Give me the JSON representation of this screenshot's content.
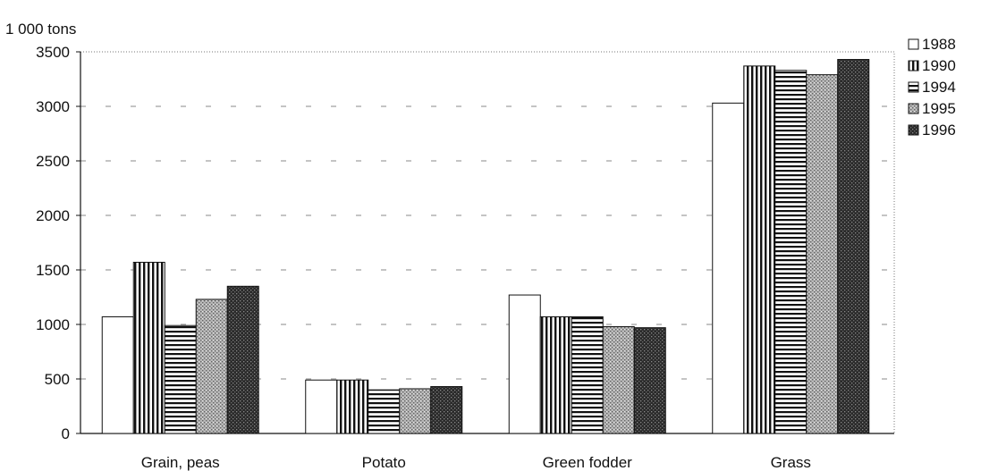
{
  "chart_data": {
    "type": "bar",
    "ylabel": "1 000 tons",
    "ylim": [
      0,
      3500
    ],
    "yticks": [
      0,
      500,
      1000,
      1500,
      2000,
      2500,
      3000,
      3500
    ],
    "categories": [
      "Grain, peas",
      "Potato",
      "Green fodder",
      "Grass"
    ],
    "series": [
      {
        "name": "1988",
        "pattern": "white",
        "values": [
          1070,
          490,
          1270,
          3030
        ]
      },
      {
        "name": "1990",
        "pattern": "vertical-stripes",
        "values": [
          1570,
          490,
          1070,
          3370
        ]
      },
      {
        "name": "1994",
        "pattern": "horizontal-stripes",
        "values": [
          990,
          400,
          1070,
          3330
        ]
      },
      {
        "name": "1995",
        "pattern": "light-crosshatch",
        "values": [
          1230,
          410,
          980,
          3290
        ]
      },
      {
        "name": "1996",
        "pattern": "dark-crosshatch",
        "values": [
          1350,
          430,
          970,
          3430
        ]
      }
    ],
    "grid": true,
    "legend_position": "top-right"
  }
}
